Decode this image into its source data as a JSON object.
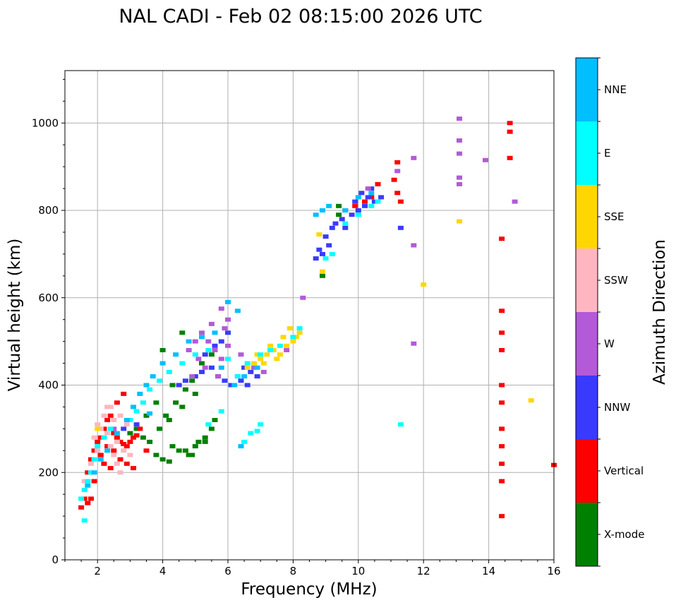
{
  "chart_data": {
    "type": "scatter",
    "title": "NAL CADI - Feb 02 08:15:00 2026 UTC",
    "xlabel": "Frequency (MHz)",
    "ylabel": "Virtual height (km)",
    "xlim": [
      1,
      16
    ],
    "ylim": [
      0,
      1120
    ],
    "xticks": [
      2,
      4,
      6,
      8,
      10,
      12,
      14,
      16
    ],
    "yticks": [
      0,
      200,
      400,
      600,
      800,
      1000
    ],
    "grid": true,
    "colorbar": {
      "label": "Azimuth Direction",
      "categories": [
        {
          "name": "X-mode",
          "color": "#008000"
        },
        {
          "name": "Vertical",
          "color": "#ff0000"
        },
        {
          "name": "NNW",
          "color": "#3a3aff"
        },
        {
          "name": "W",
          "color": "#b35ad8"
        },
        {
          "name": "SSW",
          "color": "#ffb6c1"
        },
        {
          "name": "SSE",
          "color": "#ffd700"
        },
        {
          "name": "E",
          "color": "#00ffff"
        },
        {
          "name": "NNE",
          "color": "#00bfff"
        }
      ]
    },
    "series": [
      {
        "name": "X-mode",
        "points": [
          [
            3.0,
            290
          ],
          [
            3.2,
            300
          ],
          [
            3.4,
            280
          ],
          [
            3.6,
            270
          ],
          [
            3.8,
            240
          ],
          [
            4.0,
            230
          ],
          [
            4.2,
            225
          ],
          [
            4.3,
            260
          ],
          [
            4.5,
            250
          ],
          [
            4.7,
            250
          ],
          [
            4.9,
            240
          ],
          [
            5.0,
            260
          ],
          [
            5.1,
            270
          ],
          [
            5.3,
            280
          ],
          [
            5.5,
            300
          ],
          [
            5.6,
            320
          ],
          [
            4.1,
            330
          ],
          [
            4.4,
            360
          ],
          [
            4.7,
            390
          ],
          [
            4.9,
            410
          ],
          [
            5.2,
            450
          ],
          [
            5.5,
            470
          ],
          [
            3.9,
            300
          ],
          [
            4.2,
            320
          ],
          [
            4.6,
            350
          ],
          [
            5.0,
            380
          ],
          [
            3.5,
            330
          ],
          [
            3.8,
            360
          ],
          [
            4.3,
            400
          ],
          [
            4.0,
            480
          ],
          [
            4.6,
            520
          ],
          [
            9.4,
            790
          ],
          [
            9.4,
            810
          ],
          [
            8.9,
            650
          ],
          [
            4.8,
            240
          ],
          [
            5.3,
            270
          ]
        ]
      },
      {
        "name": "Vertical",
        "points": [
          [
            1.5,
            120
          ],
          [
            1.6,
            140
          ],
          [
            1.7,
            200
          ],
          [
            1.8,
            230
          ],
          [
            1.9,
            250
          ],
          [
            2.0,
            270
          ],
          [
            2.1,
            280
          ],
          [
            2.2,
            300
          ],
          [
            2.3,
            320
          ],
          [
            2.4,
            330
          ],
          [
            2.5,
            290
          ],
          [
            2.6,
            280
          ],
          [
            2.7,
            270
          ],
          [
            2.8,
            265
          ],
          [
            2.9,
            260
          ],
          [
            3.0,
            270
          ],
          [
            3.1,
            280
          ],
          [
            3.2,
            285
          ],
          [
            3.3,
            300
          ],
          [
            2.1,
            240
          ],
          [
            2.3,
            260
          ],
          [
            2.5,
            250
          ],
          [
            2.7,
            230
          ],
          [
            2.9,
            220
          ],
          [
            3.1,
            210
          ],
          [
            2.2,
            220
          ],
          [
            2.4,
            210
          ],
          [
            1.9,
            180
          ],
          [
            1.8,
            140
          ],
          [
            2.6,
            360
          ],
          [
            2.8,
            380
          ],
          [
            3.5,
            250
          ],
          [
            1.7,
            130
          ],
          [
            10.4,
            830
          ],
          [
            10.6,
            860
          ],
          [
            10.2,
            820
          ],
          [
            9.9,
            810
          ],
          [
            11.1,
            870
          ],
          [
            11.2,
            910
          ],
          [
            11.2,
            840
          ],
          [
            11.3,
            820
          ],
          [
            9.6,
            800
          ],
          [
            14.65,
            920
          ],
          [
            14.65,
            980
          ],
          [
            14.65,
            1000
          ],
          [
            14.4,
            735
          ],
          [
            14.4,
            570
          ],
          [
            14.4,
            520
          ],
          [
            14.4,
            480
          ],
          [
            14.4,
            400
          ],
          [
            14.4,
            360
          ],
          [
            14.4,
            300
          ],
          [
            14.4,
            260
          ],
          [
            14.4,
            220
          ],
          [
            14.4,
            180
          ],
          [
            14.4,
            100
          ],
          [
            16.0,
            217
          ]
        ]
      },
      {
        "name": "NNW",
        "points": [
          [
            4.5,
            400
          ],
          [
            4.7,
            410
          ],
          [
            5.0,
            420
          ],
          [
            5.2,
            430
          ],
          [
            5.5,
            440
          ],
          [
            5.7,
            420
          ],
          [
            5.9,
            410
          ],
          [
            6.1,
            400
          ],
          [
            6.3,
            420
          ],
          [
            6.5,
            440
          ],
          [
            6.7,
            430
          ],
          [
            6.9,
            420
          ],
          [
            6.4,
            410
          ],
          [
            6.6,
            400
          ],
          [
            5.3,
            470
          ],
          [
            5.6,
            490
          ],
          [
            5.8,
            500
          ],
          [
            6.0,
            520
          ],
          [
            8.7,
            690
          ],
          [
            8.8,
            710
          ],
          [
            9.0,
            740
          ],
          [
            9.2,
            760
          ],
          [
            9.5,
            780
          ],
          [
            9.8,
            790
          ],
          [
            10.0,
            800
          ],
          [
            10.2,
            810
          ],
          [
            10.5,
            820
          ],
          [
            10.7,
            830
          ],
          [
            9.3,
            770
          ],
          [
            9.6,
            760
          ],
          [
            9.9,
            820
          ],
          [
            10.1,
            840
          ],
          [
            10.4,
            850
          ],
          [
            10.3,
            830
          ],
          [
            8.9,
            700
          ],
          [
            9.1,
            720
          ],
          [
            2.8,
            300
          ],
          [
            3.2,
            310
          ],
          [
            11.3,
            760
          ]
        ]
      },
      {
        "name": "W",
        "points": [
          [
            4.8,
            480
          ],
          [
            5.0,
            500
          ],
          [
            5.2,
            520
          ],
          [
            5.4,
            500
          ],
          [
            5.6,
            480
          ],
          [
            5.8,
            460
          ],
          [
            6.0,
            490
          ],
          [
            5.9,
            530
          ],
          [
            6.0,
            550
          ],
          [
            5.5,
            540
          ],
          [
            5.1,
            460
          ],
          [
            5.3,
            440
          ],
          [
            5.7,
            420
          ],
          [
            4.9,
            420
          ],
          [
            6.4,
            470
          ],
          [
            6.8,
            440
          ],
          [
            7.1,
            430
          ],
          [
            8.3,
            600
          ],
          [
            13.1,
            1010
          ],
          [
            13.1,
            960
          ],
          [
            13.1,
            930
          ],
          [
            13.1,
            875
          ],
          [
            13.1,
            860
          ],
          [
            13.9,
            915
          ],
          [
            11.7,
            920
          ],
          [
            11.7,
            720
          ],
          [
            11.7,
            495
          ],
          [
            14.8,
            820
          ],
          [
            10.3,
            850
          ],
          [
            11.2,
            890
          ],
          [
            2.5,
            300
          ],
          [
            3.0,
            320
          ],
          [
            5.8,
            575
          ],
          [
            7.8,
            480
          ]
        ]
      },
      {
        "name": "SSW",
        "points": [
          [
            1.6,
            180
          ],
          [
            1.8,
            220
          ],
          [
            2.0,
            250
          ],
          [
            2.1,
            300
          ],
          [
            2.2,
            330
          ],
          [
            2.3,
            290
          ],
          [
            2.4,
            260
          ],
          [
            2.5,
            240
          ],
          [
            2.6,
            220
          ],
          [
            2.7,
            200
          ],
          [
            2.5,
            320
          ],
          [
            2.3,
            350
          ],
          [
            2.7,
            330
          ],
          [
            2.9,
            310
          ],
          [
            2.8,
            250
          ],
          [
            3.0,
            240
          ],
          [
            1.9,
            280
          ],
          [
            2.0,
            310
          ],
          [
            2.6,
            270
          ],
          [
            2.4,
            350
          ]
        ]
      },
      {
        "name": "SSE",
        "points": [
          [
            6.6,
            440
          ],
          [
            6.8,
            450
          ],
          [
            7.0,
            460
          ],
          [
            7.2,
            470
          ],
          [
            7.4,
            480
          ],
          [
            7.5,
            460
          ],
          [
            7.6,
            470
          ],
          [
            7.8,
            490
          ],
          [
            8.0,
            500
          ],
          [
            8.2,
            520
          ],
          [
            7.3,
            490
          ],
          [
            7.1,
            450
          ],
          [
            7.7,
            510
          ],
          [
            7.9,
            530
          ],
          [
            8.1,
            510
          ],
          [
            8.8,
            745
          ],
          [
            8.9,
            660
          ],
          [
            12.0,
            630
          ],
          [
            13.1,
            775
          ],
          [
            15.3,
            365
          ],
          [
            2.0,
            300
          ],
          [
            6.9,
            470
          ]
        ]
      },
      {
        "name": "E",
        "points": [
          [
            1.5,
            140
          ],
          [
            1.6,
            160
          ],
          [
            1.7,
            180
          ],
          [
            1.8,
            200
          ],
          [
            1.9,
            230
          ],
          [
            2.0,
            260
          ],
          [
            2.2,
            280
          ],
          [
            2.4,
            300
          ],
          [
            3.0,
            320
          ],
          [
            3.2,
            340
          ],
          [
            3.4,
            360
          ],
          [
            3.6,
            390
          ],
          [
            3.9,
            410
          ],
          [
            4.2,
            430
          ],
          [
            4.6,
            450
          ],
          [
            5.0,
            470
          ],
          [
            5.4,
            480
          ],
          [
            6.0,
            460
          ],
          [
            6.3,
            420
          ],
          [
            6.6,
            450
          ],
          [
            7.0,
            470
          ],
          [
            7.3,
            480
          ],
          [
            7.6,
            490
          ],
          [
            8.0,
            510
          ],
          [
            8.2,
            530
          ],
          [
            9.0,
            690
          ],
          [
            9.2,
            700
          ],
          [
            9.6,
            770
          ],
          [
            10.0,
            790
          ],
          [
            10.4,
            810
          ],
          [
            10.6,
            820
          ],
          [
            7.0,
            310
          ],
          [
            6.5,
            270
          ],
          [
            5.8,
            340
          ],
          [
            5.4,
            310
          ],
          [
            11.3,
            310
          ],
          [
            1.6,
            90
          ],
          [
            6.7,
            290
          ],
          [
            6.9,
            295
          ]
        ]
      },
      {
        "name": "NNE",
        "points": [
          [
            1.7,
            170
          ],
          [
            1.9,
            200
          ],
          [
            2.1,
            230
          ],
          [
            2.3,
            250
          ],
          [
            2.6,
            290
          ],
          [
            2.9,
            320
          ],
          [
            3.1,
            350
          ],
          [
            3.3,
            380
          ],
          [
            3.5,
            400
          ],
          [
            3.7,
            420
          ],
          [
            4.0,
            450
          ],
          [
            4.4,
            470
          ],
          [
            4.8,
            500
          ],
          [
            5.2,
            510
          ],
          [
            5.6,
            520
          ],
          [
            5.8,
            440
          ],
          [
            6.2,
            400
          ],
          [
            6.5,
            420
          ],
          [
            6.9,
            440
          ],
          [
            8.7,
            790
          ],
          [
            8.9,
            800
          ],
          [
            9.1,
            810
          ],
          [
            9.6,
            800
          ],
          [
            10.0,
            830
          ],
          [
            10.4,
            840
          ],
          [
            6.3,
            570
          ],
          [
            6.0,
            590
          ],
          [
            3.6,
            335
          ],
          [
            6.4,
            260
          ]
        ]
      }
    ]
  }
}
